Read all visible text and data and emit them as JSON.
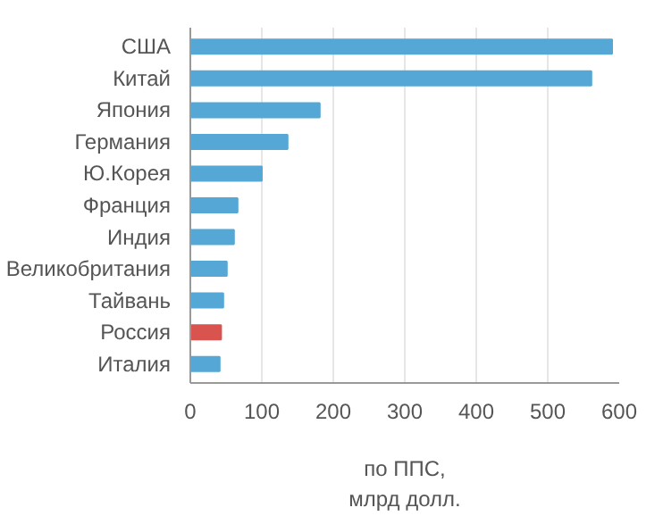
{
  "chart_data": {
    "type": "bar",
    "orientation": "horizontal",
    "xlabel": "по ППС,\nмлрд долл.",
    "categories": [
      "США",
      "Китай",
      "Япония",
      "Германия",
      "Ю.Корея",
      "Франция",
      "Индия",
      "Великобритания",
      "Тайвань",
      "Россия",
      "Италия"
    ],
    "values": [
      590,
      561,
      181,
      136,
      100,
      66,
      61,
      51,
      46,
      43,
      41
    ],
    "colors": [
      "#55a8d6",
      "#55a8d6",
      "#55a8d6",
      "#55a8d6",
      "#55a8d6",
      "#55a8d6",
      "#55a8d6",
      "#55a8d6",
      "#55a8d6",
      "#d9534f",
      "#55a8d6"
    ],
    "xlim": [
      0,
      600
    ],
    "xticks": [
      0,
      100,
      200,
      300,
      400,
      500,
      600
    ],
    "grid": "x"
  }
}
